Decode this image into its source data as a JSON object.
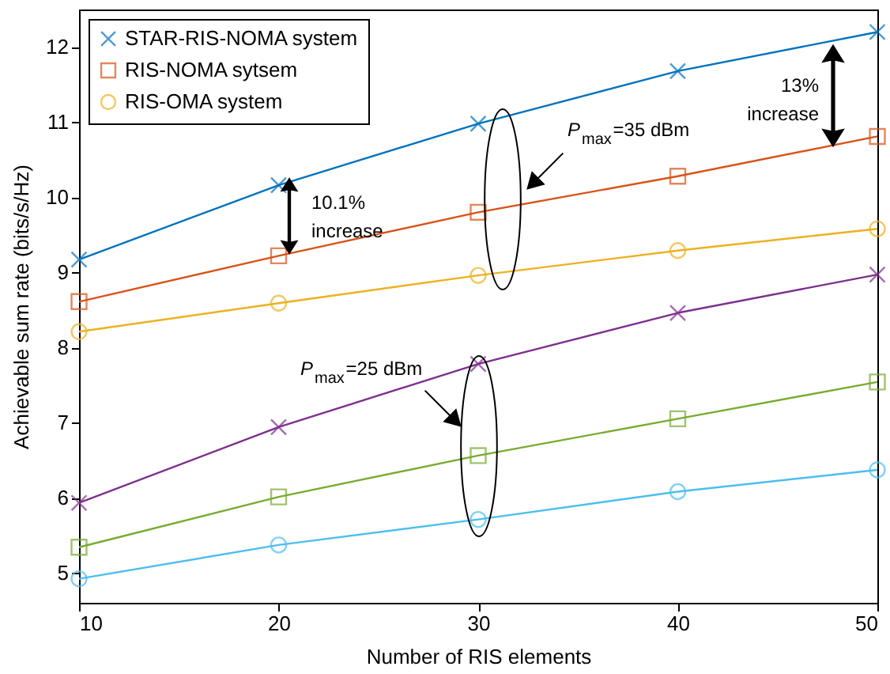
{
  "chart_data": {
    "type": "line",
    "xlabel": "Number of RIS elements",
    "ylabel": "Achievable sum rate (bits/s/Hz)",
    "x": [
      10,
      20,
      30,
      40,
      50
    ],
    "xlim": [
      10,
      50
    ],
    "xticks": [
      10,
      20,
      30,
      40,
      50
    ],
    "ylim": [
      4.6,
      12.5
    ],
    "yticks": [
      5,
      6,
      7,
      8,
      9,
      10,
      11,
      12
    ],
    "grid": false,
    "legend": "top left",
    "line_style": "solid",
    "series": [
      {
        "name": "STAR-RIS-NOMA system",
        "color": "#0072bd",
        "marker": "cross",
        "values": [
          9.17,
          10.16,
          10.98,
          11.68,
          12.2
        ]
      },
      {
        "name": "RIS-NOMA sytsem",
        "color": "#d95319",
        "marker": "square",
        "values": [
          8.61,
          9.22,
          9.8,
          10.28,
          10.81
        ]
      },
      {
        "name": "RIS-OMA system",
        "color": "#edb120",
        "marker": "circle",
        "values": [
          8.21,
          8.59,
          8.96,
          9.29,
          9.58
        ]
      },
      {
        "color": "#7e2f8e",
        "marker": "cross",
        "values": [
          5.93,
          6.94,
          7.78,
          8.46,
          8.97
        ]
      },
      {
        "color": "#77ac30",
        "marker": "square",
        "values": [
          5.34,
          6.01,
          6.56,
          7.05,
          7.54
        ]
      },
      {
        "color": "#4dbeee",
        "marker": "circle",
        "values": [
          4.92,
          5.37,
          5.71,
          6.08,
          6.37
        ]
      }
    ],
    "annotations": [
      "10.1%\nincrease",
      "13%\nincrease",
      "P$_{max}$=35 dBm",
      "P$_{max}$=25 dBm"
    ]
  }
}
